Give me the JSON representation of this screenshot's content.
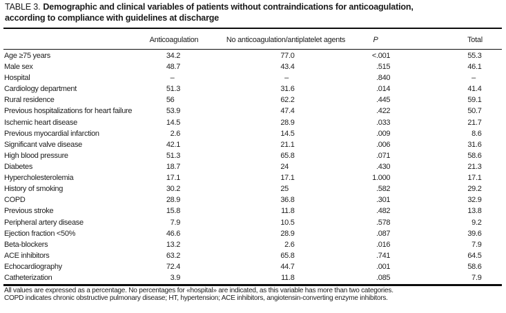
{
  "title": {
    "prefix": "TABLE 3.",
    "line1": "Demographic and clinical variables of patients without contraindications for anticoagulation,",
    "line2": "according to compliance with guidelines at discharge"
  },
  "table": {
    "columns": [
      "Anticoagulation",
      "No anticoagulation/antiplatelet agents",
      "P",
      "Total"
    ],
    "rows": [
      {
        "label": "Age ≥75 years",
        "values": [
          "34.2",
          "77.0",
          "<.001",
          "55.3"
        ]
      },
      {
        "label": "Male sex",
        "values": [
          "48.7",
          "43.4",
          ".515",
          "46.1"
        ]
      },
      {
        "label": "Hospital",
        "values": [
          "–",
          "–",
          ".840",
          "–"
        ]
      },
      {
        "label": "Cardiology department",
        "values": [
          "51.3",
          "31.6",
          ".014",
          "41.4"
        ]
      },
      {
        "label": "Rural residence",
        "values": [
          "56",
          "62.2",
          ".445",
          "59.1"
        ]
      },
      {
        "label": "Previous hospitalizations for heart failure",
        "values": [
          "53.9",
          "47.4",
          ".422",
          "50.7"
        ]
      },
      {
        "label": "Ischemic heart disease",
        "values": [
          "14.5",
          "28.9",
          ".033",
          "21.7"
        ]
      },
      {
        "label": "Previous myocardial infarction",
        "values": [
          "2.6",
          "14.5",
          ".009",
          "8.6"
        ]
      },
      {
        "label": "Significant valve disease",
        "values": [
          "42.1",
          "21.1",
          ".006",
          "31.6"
        ]
      },
      {
        "label": "High blood pressure",
        "values": [
          "51.3",
          "65.8",
          ".071",
          "58.6"
        ]
      },
      {
        "label": "Diabetes",
        "values": [
          "18.7",
          "24",
          ".430",
          "21.3"
        ]
      },
      {
        "label": "Hypercholesterolemia",
        "values": [
          "17.1",
          "17.1",
          "1.000",
          "17.1"
        ]
      },
      {
        "label": "History of smoking",
        "values": [
          "30.2",
          "25",
          ".582",
          "29.2"
        ]
      },
      {
        "label": "COPD",
        "values": [
          "28.9",
          "36.8",
          ".301",
          "32.9"
        ]
      },
      {
        "label": "Previous stroke",
        "values": [
          "15.8",
          "11.8",
          ".482",
          "13.8"
        ]
      },
      {
        "label": "Peripheral artery disease",
        "values": [
          "7.9",
          "10.5",
          ".578",
          "9.2"
        ]
      },
      {
        "label": "Ejection fraction <50%",
        "values": [
          "46.6",
          "28.9",
          ".087",
          "39.6"
        ]
      },
      {
        "label": "Beta-blockers",
        "values": [
          "13.2",
          "2.6",
          ".016",
          "7.9"
        ]
      },
      {
        "label": "ACE inhibitors",
        "values": [
          "63.2",
          "65.8",
          ".741",
          "64.5"
        ]
      },
      {
        "label": "Echocardiography",
        "values": [
          "72.4",
          "44.7",
          ".001",
          "58.6"
        ]
      },
      {
        "label": "Catheterization",
        "values": [
          "3.9",
          "11.8",
          ".085",
          "7.9"
        ]
      }
    ]
  },
  "footnotes": [
    "All values are expressed as a percentage. No percentages for «hospital» are indicated, as this variable has more than two categories.",
    "COPD indicates chronic obstructive pulmonary disease; HT, hypertension; ACE inhibitors, angiotensin-converting enzyme inhibitors."
  ],
  "colors": {
    "text": "#1b1b1b",
    "rule": "#0b0b0b",
    "background": "#ffffff"
  }
}
